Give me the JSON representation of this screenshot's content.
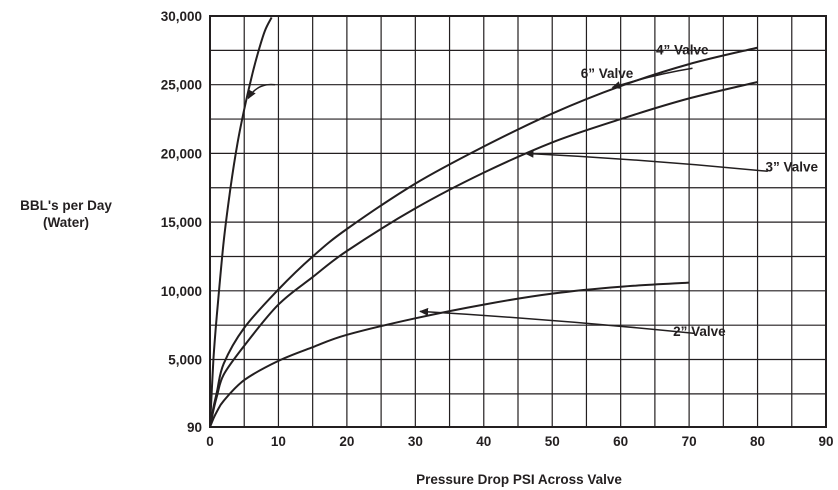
{
  "chart_data": {
    "type": "line",
    "title": "",
    "xlabel": "Pressure Drop PSI Across Valve",
    "ylabel_lines": [
      "BBL's per Day",
      "(Water)"
    ],
    "xlim": [
      0,
      90
    ],
    "ylim": [
      90,
      30000
    ],
    "x_ticks": [
      0,
      10,
      20,
      30,
      40,
      50,
      60,
      70,
      80,
      90
    ],
    "x_tick_labels": [
      "0",
      "10",
      "20",
      "30",
      "40",
      "50",
      "60",
      "70",
      "80",
      "90"
    ],
    "y_ticks": [
      90,
      5000,
      10000,
      15000,
      20000,
      25000,
      30000
    ],
    "y_tick_labels": [
      "90",
      "5,000",
      "10,000",
      "15,000",
      "20,000",
      "25,000",
      "30,000"
    ],
    "grid": true,
    "legend": "none",
    "series": [
      {
        "name": "6” Valve",
        "x": [
          0.5,
          1,
          2,
          3,
          4,
          5,
          6,
          7,
          8,
          9
        ],
        "y": [
          5000,
          8200,
          13600,
          17500,
          20700,
          23200,
          25400,
          27300,
          28900,
          29900
        ],
        "label_at": [
          58,
          25500
        ],
        "arrow_from": [
          9.5,
          25000
        ],
        "arrow_to": [
          5.6,
          24000
        ]
      },
      {
        "name": "4” Valve",
        "x": [
          0.5,
          1,
          2,
          5,
          10,
          15,
          20,
          30,
          40,
          50,
          60,
          70,
          80
        ],
        "y": [
          1500,
          2600,
          4700,
          7300,
          10100,
          12500,
          14500,
          17800,
          20500,
          22900,
          24900,
          26500,
          27700
        ],
        "label_at": [
          69,
          27200
        ],
        "arrow_from": [
          70.5,
          26200
        ],
        "arrow_to": [
          58.8,
          24800
        ]
      },
      {
        "name": "3” Valve",
        "x": [
          0.5,
          1,
          2,
          5,
          10,
          15,
          20,
          30,
          40,
          50,
          60,
          70,
          80
        ],
        "y": [
          1300,
          2300,
          3900,
          6000,
          9000,
          11000,
          12900,
          16000,
          18600,
          20800,
          22500,
          24000,
          25200
        ],
        "label_at": [
          85,
          18700
        ],
        "arrow_from": [
          81.5,
          18700
        ],
        "arrow_to": [
          46.1,
          20000
        ]
      },
      {
        "name": "2” Valve",
        "x": [
          0.5,
          1,
          2,
          5,
          10,
          15,
          20,
          30,
          40,
          50,
          60,
          70
        ],
        "y": [
          700,
          1200,
          2000,
          3500,
          4900,
          5900,
          6800,
          8000,
          9000,
          9800,
          10300,
          10600
        ],
        "label_at": [
          71.5,
          6700
        ],
        "arrow_from": [
          70.8,
          6900
        ],
        "arrow_to": [
          30.7,
          8500
        ]
      }
    ]
  }
}
